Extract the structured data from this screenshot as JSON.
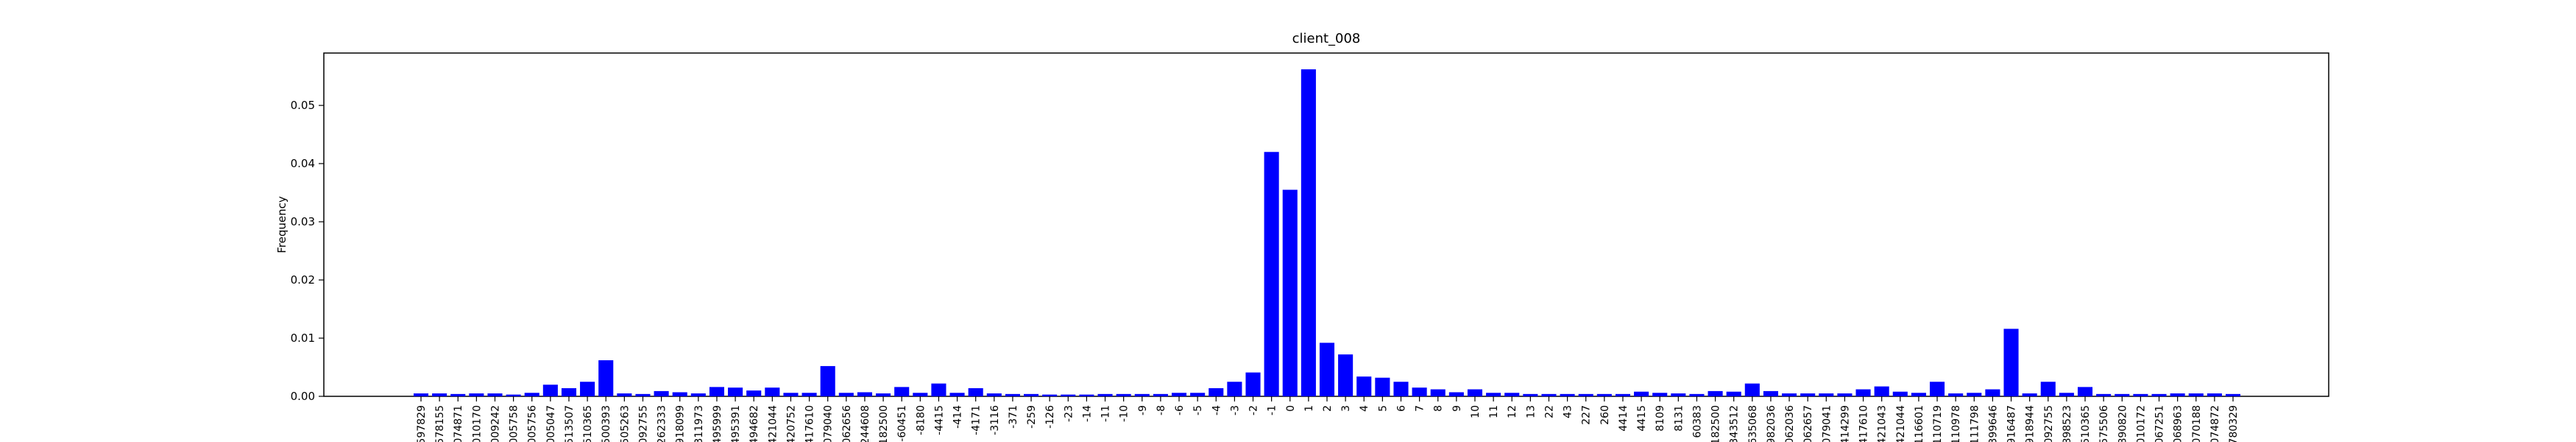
{
  "chart_data": {
    "type": "bar",
    "title": "client_008",
    "ylabel": "Frequency",
    "color": "#0000ff",
    "categories": [
      "597829",
      "578155",
      "074871",
      "010170",
      "009242",
      "005758",
      "005756",
      "005047",
      "513507",
      "510365",
      "500393",
      "505263",
      "092755",
      "262333",
      "918099",
      "311973",
      "495999",
      "495391",
      "494682",
      "421044",
      "420752",
      "417610",
      "079040",
      "062656",
      "244608",
      "182500",
      "-60451",
      "-8180",
      "-4415",
      "-414",
      "-4171",
      "-3116",
      "-371",
      "-259",
      "-126",
      "-23",
      "-14",
      "-11",
      "-10",
      "-9",
      "-8",
      "-6",
      "-5",
      "-4",
      "-3",
      "-2",
      "-1",
      "0",
      "1",
      "2",
      "3",
      "4",
      "5",
      "6",
      "7",
      "8",
      "9",
      "10",
      "11",
      "12",
      "13",
      "22",
      "43",
      "227",
      "260",
      "4414",
      "4415",
      "8109",
      "8131",
      "60383",
      "182500",
      "343512",
      "635068",
      "982036",
      "062036",
      "062657",
      "079041",
      "414299",
      "417610",
      "421043",
      "421044",
      "116601",
      "110719",
      "110978",
      "111798",
      "399646",
      "916487",
      "918944",
      "092755",
      "898523",
      "510365",
      "575506",
      "890820",
      "010172",
      "067251",
      "068963",
      "070188",
      "074872",
      "780329"
    ],
    "values": [
      0.0005,
      0.0005,
      0.0004,
      0.0005,
      0.0005,
      0.0003,
      0.0006,
      0.002,
      0.0014,
      0.0025,
      0.0062,
      0.0005,
      0.0004,
      0.0009,
      0.0007,
      0.0005,
      0.0016,
      0.0015,
      0.001,
      0.0015,
      0.0006,
      0.0006,
      0.0052,
      0.0006,
      0.0007,
      0.0005,
      0.0016,
      0.0006,
      0.0022,
      0.0006,
      0.0014,
      0.0005,
      0.0004,
      0.0004,
      0.0003,
      0.0003,
      0.0003,
      0.0004,
      0.0004,
      0.0004,
      0.0004,
      0.0006,
      0.0006,
      0.0014,
      0.0025,
      0.0041,
      0.042,
      0.0355,
      0.0562,
      0.0092,
      0.0072,
      0.0034,
      0.0032,
      0.0025,
      0.0015,
      0.0012,
      0.0007,
      0.0012,
      0.0006,
      0.0006,
      0.0004,
      0.0004,
      0.0004,
      0.0004,
      0.0004,
      0.0004,
      0.0008,
      0.0006,
      0.0005,
      0.0004,
      0.0009,
      0.0008,
      0.0022,
      0.0009,
      0.0005,
      0.0005,
      0.0005,
      0.0005,
      0.0012,
      0.0017,
      0.0008,
      0.0006,
      0.0025,
      0.0005,
      0.0006,
      0.0012,
      0.0116,
      0.0005,
      0.0025,
      0.0006,
      0.0016,
      0.0004,
      0.0004,
      0.0004,
      0.0004,
      0.0005,
      0.0005,
      0.0005,
      0.0004
    ],
    "ylim": [
      0,
      0.059
    ],
    "yticks": [
      {
        "value": 0,
        "label": "0.00"
      },
      {
        "value": 0.01,
        "label": "0.01"
      },
      {
        "value": 0.02,
        "label": "0.02"
      },
      {
        "value": 0.03,
        "label": "0.03"
      },
      {
        "value": 0.04,
        "label": "0.04"
      },
      {
        "value": 0.05,
        "label": "0.05"
      }
    ],
    "grid": false
  }
}
